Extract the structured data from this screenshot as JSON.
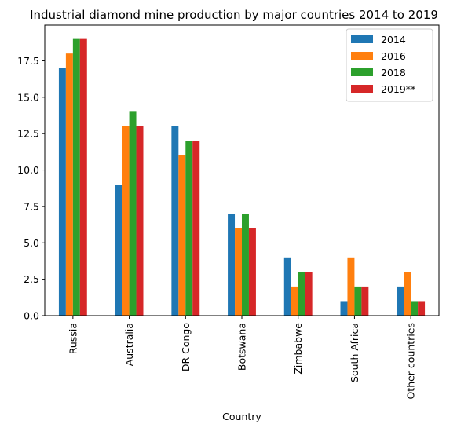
{
  "chart_data": {
    "type": "bar",
    "title": "Industrial diamond mine production by major countries 2014 to 2019",
    "xlabel": "Country",
    "ylabel": "",
    "categories": [
      "Russia",
      "Australia",
      "DR Congo",
      "Botswana",
      "Zimbabwe",
      "South Africa",
      "Other countries"
    ],
    "series": [
      {
        "name": "2014",
        "color": "#1f77b4",
        "values": [
          17,
          9,
          13,
          7,
          4,
          1,
          2
        ]
      },
      {
        "name": "2016",
        "color": "#ff7f0e",
        "values": [
          18,
          13,
          11,
          6,
          2,
          4,
          3
        ]
      },
      {
        "name": "2018",
        "color": "#2ca02c",
        "values": [
          19,
          14,
          12,
          7,
          3,
          2,
          1
        ]
      },
      {
        "name": "2019**",
        "color": "#d62728",
        "values": [
          19,
          13,
          12,
          6,
          3,
          2,
          1
        ]
      }
    ],
    "ylim": [
      0,
      19.95
    ],
    "yticks": [
      "0.0",
      "2.5",
      "5.0",
      "7.5",
      "10.0",
      "12.5",
      "15.0",
      "17.5"
    ],
    "grid": false,
    "legend_position": "top-right"
  }
}
